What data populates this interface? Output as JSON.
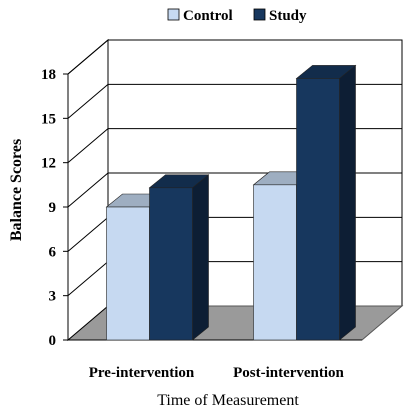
{
  "chart_data": {
    "type": "bar",
    "title": "",
    "categories": [
      "Pre-intervention",
      "Post-intervention"
    ],
    "series": [
      {
        "name": "Control",
        "values": [
          9.0,
          10.5
        ],
        "color": "#c6d9f1"
      },
      {
        "name": "Study",
        "values": [
          10.3,
          17.7
        ],
        "color": "#17375e"
      }
    ],
    "xlabel": "Time of Measurement",
    "ylabel": "Balance Scores",
    "ylim": [
      0,
      18
    ],
    "yticks": [
      "0",
      "3",
      "6",
      "9",
      "12",
      "15",
      "18"
    ],
    "grid": true,
    "legend_position": "top-center",
    "floor_color": "#9a9a9a",
    "three_d": true
  }
}
